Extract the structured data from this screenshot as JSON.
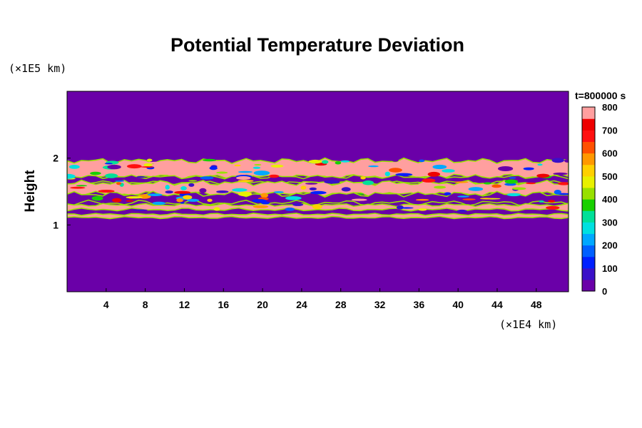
{
  "chart_data": {
    "type": "heatmap",
    "title": "Potential Temperature Deviation",
    "ylabel": "Height",
    "y_unit": "(×1E5 km)",
    "x_unit": "(×1E4 km)",
    "time_label": "t=800000 s",
    "xlim": [
      0,
      51.3
    ],
    "ylim": [
      0,
      3.0
    ],
    "x_ticks": [
      4,
      8,
      12,
      16,
      20,
      24,
      28,
      32,
      36,
      40,
      44,
      48
    ],
    "y_ticks": [
      1,
      2
    ],
    "colorbar": {
      "range": [
        0,
        800
      ],
      "ticks": [
        0,
        100,
        200,
        300,
        400,
        500,
        600,
        700,
        800
      ],
      "colors": [
        "#6a00a8",
        "#3a10c8",
        "#0020ff",
        "#0060ff",
        "#00a8ff",
        "#00e0e0",
        "#00e098",
        "#18d000",
        "#98e000",
        "#e8f000",
        "#ffd000",
        "#ff9800",
        "#ff5000",
        "#ff1010",
        "#ee0000",
        "#ff9f9f"
      ]
    },
    "layers": [
      {
        "y_bottom": 1.72,
        "y_top": 1.96,
        "value": 800
      },
      {
        "y_bottom": 1.63,
        "y_top": 1.72,
        "value": 0
      },
      {
        "y_bottom": 1.46,
        "y_top": 1.63,
        "value": 800
      },
      {
        "y_bottom": 1.33,
        "y_top": 1.46,
        "value": 0
      },
      {
        "y_bottom": 1.23,
        "y_top": 1.3,
        "value": 800
      },
      {
        "y_bottom": 1.11,
        "y_top": 1.16,
        "value": 800
      }
    ],
    "grid": false,
    "legend": "right"
  }
}
